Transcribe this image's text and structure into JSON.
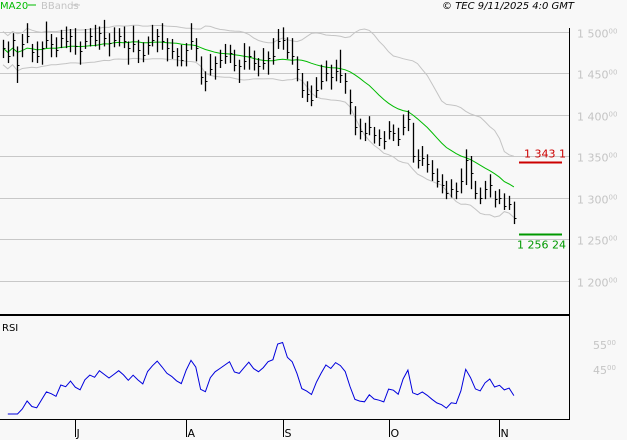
{
  "header": {
    "legend": [
      {
        "label": "MA20",
        "color": "#00bb00"
      },
      {
        "label": "BBands",
        "color": "#c4c4c4"
      }
    ],
    "copyright": "© TEC 9/11/2025 4:0 GMT"
  },
  "chart_data": [
    {
      "type": "ohlc",
      "ylim": [
        1170,
        1540
      ],
      "yticks": [
        {
          "value": 1500,
          "label": "1 500",
          "sup": "00"
        },
        {
          "value": 1450,
          "label": "1 450",
          "sup": "00"
        },
        {
          "value": 1400,
          "label": "1 400",
          "sup": "00"
        },
        {
          "value": 1350,
          "label": "1 350",
          "sup": "00"
        },
        {
          "value": 1300,
          "label": "1 300",
          "sup": "00"
        },
        {
          "value": 1250,
          "label": "1 250",
          "sup": "00"
        },
        {
          "value": 1200,
          "label": "1 200",
          "sup": "00"
        }
      ],
      "grid": true,
      "months": [
        {
          "label": "J",
          "bar": 15
        },
        {
          "label": "A",
          "bar": 38
        },
        {
          "label": "S",
          "bar": 58
        },
        {
          "label": "O",
          "bar": 80
        },
        {
          "label": "N",
          "bar": 103
        }
      ],
      "close": [
        1480,
        1470,
        1490,
        1460,
        1485,
        1495,
        1475,
        1470,
        1480,
        1490,
        1485,
        1478,
        1492,
        1488,
        1495,
        1482,
        1476,
        1488,
        1494,
        1490,
        1498,
        1492,
        1486,
        1490,
        1494,
        1488,
        1480,
        1485,
        1478,
        1472,
        1484,
        1490,
        1495,
        1488,
        1480,
        1476,
        1470,
        1466,
        1478,
        1488,
        1480,
        1445,
        1440,
        1455,
        1462,
        1466,
        1470,
        1474,
        1460,
        1458,
        1464,
        1470,
        1462,
        1458,
        1462,
        1468,
        1470,
        1488,
        1490,
        1475,
        1470,
        1455,
        1430,
        1425,
        1418,
        1430,
        1440,
        1450,
        1445,
        1452,
        1448,
        1440,
        1415,
        1385,
        1380,
        1378,
        1385,
        1375,
        1372,
        1368,
        1380,
        1378,
        1370,
        1385,
        1395,
        1350,
        1345,
        1348,
        1340,
        1330,
        1320,
        1315,
        1305,
        1310,
        1308,
        1320,
        1345,
        1330,
        1305,
        1300,
        1310,
        1315,
        1298,
        1300,
        1290,
        1292,
        1275
      ],
      "high": [
        1490,
        1488,
        1498,
        1482,
        1497,
        1510,
        1485,
        1488,
        1488,
        1512,
        1497,
        1493,
        1502,
        1506,
        1503,
        1504,
        1488,
        1503,
        1504,
        1508,
        1506,
        1514,
        1498,
        1505,
        1504,
        1506,
        1488,
        1507,
        1490,
        1487,
        1494,
        1508,
        1503,
        1510,
        1492,
        1491,
        1480,
        1484,
        1486,
        1510,
        1492,
        1470,
        1452,
        1473,
        1470,
        1478,
        1485,
        1484,
        1478,
        1466,
        1486,
        1482,
        1477,
        1468,
        1480,
        1476,
        1492,
        1503,
        1505,
        1493,
        1492,
        1470,
        1450,
        1440,
        1435,
        1445,
        1460,
        1465,
        1460,
        1466,
        1478,
        1450,
        1430,
        1410,
        1395,
        1390,
        1398,
        1385,
        1382,
        1380,
        1392,
        1388,
        1384,
        1400,
        1405,
        1390,
        1358,
        1362,
        1352,
        1345,
        1335,
        1328,
        1320,
        1322,
        1318,
        1335,
        1358,
        1350,
        1320,
        1312,
        1320,
        1328,
        1308,
        1310,
        1305,
        1302,
        1295
      ],
      "low": [
        1468,
        1462,
        1470,
        1438,
        1469,
        1486,
        1463,
        1462,
        1460,
        1480,
        1469,
        1469,
        1480,
        1480,
        1475,
        1472,
        1460,
        1479,
        1482,
        1482,
        1478,
        1482,
        1470,
        1481,
        1482,
        1480,
        1460,
        1475,
        1462,
        1463,
        1472,
        1482,
        1475,
        1478,
        1464,
        1467,
        1458,
        1458,
        1458,
        1478,
        1464,
        1436,
        1428,
        1447,
        1442,
        1456,
        1461,
        1462,
        1452,
        1438,
        1454,
        1454,
        1453,
        1446,
        1454,
        1448,
        1460,
        1479,
        1478,
        1467,
        1460,
        1440,
        1420,
        1415,
        1410,
        1420,
        1430,
        1440,
        1430,
        1440,
        1438,
        1425,
        1400,
        1375,
        1370,
        1368,
        1375,
        1365,
        1362,
        1358,
        1370,
        1368,
        1362,
        1375,
        1380,
        1342,
        1335,
        1338,
        1330,
        1320,
        1312,
        1305,
        1298,
        1300,
        1298,
        1305,
        1315,
        1310,
        1298,
        1292,
        1298,
        1300,
        1288,
        1292,
        1285,
        1285,
        1268
      ],
      "levels": [
        {
          "value": 1343.1,
          "label": "1 343 1",
          "color": "#cc0000"
        },
        {
          "value": 1256.24,
          "label": "1 256 24",
          "color": "#009900"
        }
      ]
    },
    {
      "type": "line",
      "title": "RSI",
      "ylim": [
        28,
        66
      ],
      "yticks": [
        {
          "value": 55,
          "label": "55",
          "sup": "00"
        },
        {
          "value": 45,
          "label": "45",
          "sup": "00"
        }
      ],
      "color": "#0000dd"
    }
  ]
}
